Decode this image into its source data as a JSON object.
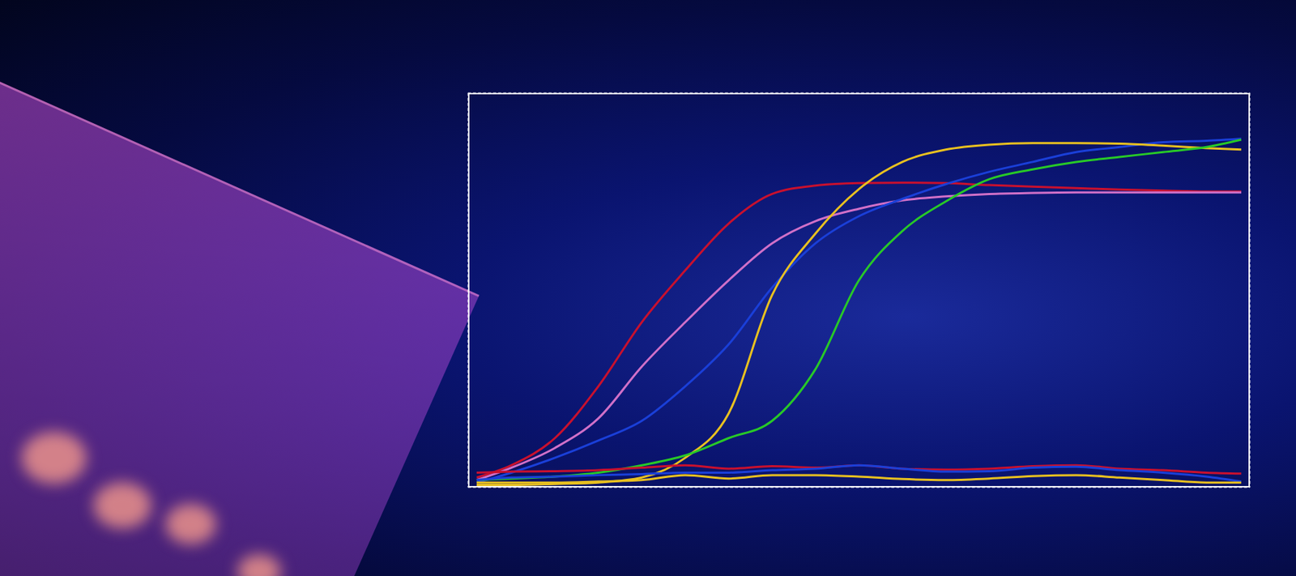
{
  "chart_data": {
    "type": "line",
    "grid": true,
    "tick_labels": false,
    "xlim": [
      0,
      9
    ],
    "xticks": [
      0,
      1,
      2,
      3,
      4,
      5,
      6,
      7,
      8,
      9
    ],
    "ylim": [
      0,
      8
    ],
    "yticks": [
      0,
      1,
      2,
      3,
      4,
      5,
      6,
      7,
      8
    ],
    "x": [
      0.1,
      0.5,
      1,
      1.5,
      2,
      2.5,
      3,
      3.5,
      4,
      4.5,
      5,
      5.5,
      6,
      6.5,
      7,
      7.5,
      8,
      8.5,
      8.9
    ],
    "series": [
      {
        "color": "#c8102e",
        "values": [
          0.2,
          0.45,
          1.0,
          2.05,
          3.35,
          4.4,
          5.35,
          5.95,
          6.12,
          6.17,
          6.18,
          6.17,
          6.13,
          6.1,
          6.07,
          6.04,
          6.02,
          6.0,
          6.0
        ]
      },
      {
        "color": "#d070c8",
        "values": [
          0.15,
          0.4,
          0.8,
          1.4,
          2.45,
          3.35,
          4.2,
          4.95,
          5.4,
          5.65,
          5.82,
          5.9,
          5.95,
          5.97,
          5.98,
          5.98,
          5.98,
          5.98,
          5.98
        ]
      },
      {
        "color": "#1a3fd8",
        "values": [
          0.1,
          0.3,
          0.6,
          0.95,
          1.35,
          2.05,
          2.9,
          4.05,
          4.95,
          5.5,
          5.85,
          6.15,
          6.4,
          6.6,
          6.8,
          6.9,
          7.0,
          7.03,
          7.07
        ]
      },
      {
        "color": "#e8c020",
        "values": [
          0.05,
          0.05,
          0.07,
          0.1,
          0.2,
          0.6,
          1.5,
          3.9,
          5.15,
          6.05,
          6.6,
          6.85,
          6.95,
          6.98,
          6.98,
          6.97,
          6.93,
          6.88,
          6.85
        ]
      },
      {
        "color": "#28c828",
        "values": [
          0.15,
          0.18,
          0.22,
          0.3,
          0.45,
          0.65,
          1.0,
          1.35,
          2.4,
          4.2,
          5.2,
          5.8,
          6.25,
          6.45,
          6.6,
          6.7,
          6.8,
          6.9,
          7.05
        ]
      },
      {
        "color": "#c8102e",
        "values": [
          0.3,
          0.32,
          0.33,
          0.35,
          0.4,
          0.45,
          0.38,
          0.43,
          0.4,
          0.45,
          0.38,
          0.36,
          0.38,
          0.43,
          0.45,
          0.38,
          0.35,
          0.3,
          0.28
        ]
      },
      {
        "color": "#1a3fd8",
        "values": [
          0.15,
          0.2,
          0.22,
          0.25,
          0.27,
          0.3,
          0.3,
          0.35,
          0.38,
          0.45,
          0.38,
          0.32,
          0.33,
          0.4,
          0.42,
          0.35,
          0.3,
          0.22,
          0.12
        ]
      },
      {
        "color": "#e8c020",
        "values": [
          0.1,
          0.1,
          0.1,
          0.12,
          0.15,
          0.25,
          0.18,
          0.25,
          0.25,
          0.22,
          0.17,
          0.15,
          0.18,
          0.23,
          0.25,
          0.2,
          0.15,
          0.1,
          0.1
        ]
      }
    ]
  }
}
